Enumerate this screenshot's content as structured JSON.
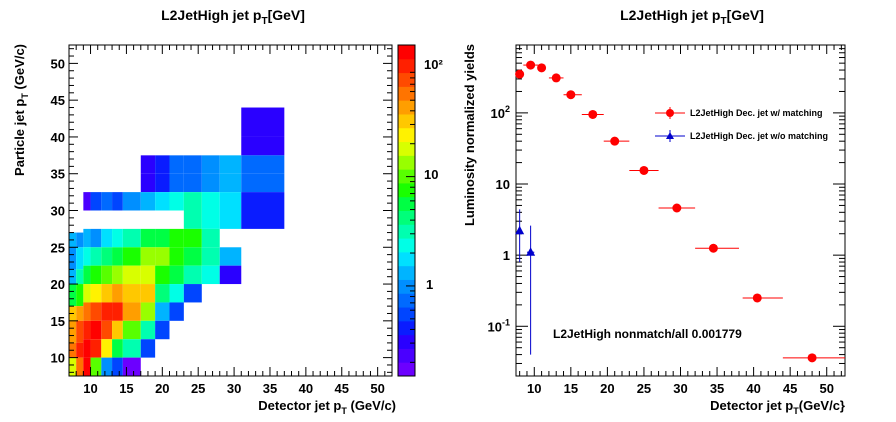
{
  "chart_data": [
    {
      "type": "heatmap",
      "title": "L2JetHigh jet p",
      "title_sub": "T",
      "title_suffix": "[GeV]",
      "xlabel": "Detector jet p",
      "xlabel_sub": "T",
      "xlabel_suffix": " (GeV/c)",
      "ylabel": "Particle jet p",
      "ylabel_sub": "T",
      "ylabel_suffix": " (GeV/c)",
      "xlim": [
        7,
        52
      ],
      "ylim": [
        7.5,
        52.5
      ],
      "xticks": [
        "10",
        "15",
        "20",
        "25",
        "30",
        "35",
        "40",
        "45",
        "50"
      ],
      "yticks": [
        "10",
        "15",
        "20",
        "25",
        "30",
        "35",
        "40",
        "45",
        "50"
      ],
      "zscale": "log",
      "zlim": [
        0.15,
        160
      ],
      "zticks": [
        "1",
        "10",
        "10²"
      ],
      "colormap": [
        "#6c00ff",
        "#4a00ff",
        "#2a00ff",
        "#0a1cff",
        "#0045ff",
        "#006aff",
        "#008fff",
        "#00b4ff",
        "#00e0ff",
        "#00ffe6",
        "#00ffb0",
        "#00ff7a",
        "#00ff44",
        "#1aff00",
        "#58ff00",
        "#98ff00",
        "#d8ff00",
        "#fff200",
        "#ffc800",
        "#ff9e00",
        "#ff7400",
        "#ff4a00",
        "#ff2000",
        "#ff0000"
      ],
      "cells": [
        {
          "x0": 7,
          "x1": 8,
          "y0": 25,
          "y1": 27,
          "z": 1.5
        },
        {
          "x0": 7,
          "x1": 8,
          "y0": 22,
          "y1": 25,
          "z": 1.0
        },
        {
          "x0": 7,
          "x1": 8,
          "y0": 20,
          "y1": 22,
          "z": 1.3
        },
        {
          "x0": 7,
          "x1": 8,
          "y0": 17,
          "y1": 20,
          "z": 5.0
        },
        {
          "x0": 7,
          "x1": 8,
          "y0": 15,
          "y1": 17,
          "z": 30
        },
        {
          "x0": 7,
          "x1": 8,
          "y0": 12,
          "y1": 15,
          "z": 50
        },
        {
          "x0": 7,
          "x1": 8,
          "y0": 10,
          "y1": 12,
          "z": 60
        },
        {
          "x0": 7,
          "x1": 8,
          "y0": 7.5,
          "y1": 10,
          "z": 20
        },
        {
          "x0": 8,
          "x1": 9,
          "y0": 25,
          "y1": 27,
          "z": 0.9
        },
        {
          "x0": 8,
          "x1": 9,
          "y0": 22,
          "y1": 25,
          "z": 1.8
        },
        {
          "x0": 8,
          "x1": 9,
          "y0": 20,
          "y1": 22,
          "z": 3.5
        },
        {
          "x0": 8,
          "x1": 9,
          "y0": 17,
          "y1": 20,
          "z": 8
        },
        {
          "x0": 8,
          "x1": 9,
          "y0": 15,
          "y1": 17,
          "z": 40
        },
        {
          "x0": 8,
          "x1": 9,
          "y0": 12,
          "y1": 15,
          "z": 70
        },
        {
          "x0": 8,
          "x1": 9,
          "y0": 10,
          "y1": 12,
          "z": 90
        },
        {
          "x0": 8,
          "x1": 9,
          "y0": 7.5,
          "y1": 10,
          "z": 60
        },
        {
          "x0": 9,
          "x1": 10,
          "y0": 30,
          "y1": 32.5,
          "z": 0.25
        },
        {
          "x0": 9,
          "x1": 10,
          "y0": 25,
          "y1": 27.5,
          "z": 1.2
        },
        {
          "x0": 9,
          "x1": 10,
          "y0": 22.5,
          "y1": 25,
          "z": 2.5
        },
        {
          "x0": 9,
          "x1": 10,
          "y0": 20,
          "y1": 22.5,
          "z": 6
        },
        {
          "x0": 9,
          "x1": 10,
          "y0": 17.5,
          "y1": 20,
          "z": 20
        },
        {
          "x0": 9,
          "x1": 10,
          "y0": 15,
          "y1": 17.5,
          "z": 60
        },
        {
          "x0": 9,
          "x1": 10,
          "y0": 12.5,
          "y1": 15,
          "z": 100
        },
        {
          "x0": 9,
          "x1": 10,
          "y0": 10,
          "y1": 12.5,
          "z": 150
        },
        {
          "x0": 9,
          "x1": 10,
          "y0": 7.5,
          "y1": 10,
          "z": 120
        },
        {
          "x0": 10,
          "x1": 11.5,
          "y0": 30,
          "y1": 32.5,
          "z": 0.6
        },
        {
          "x0": 10,
          "x1": 11.5,
          "y0": 25,
          "y1": 27.5,
          "z": 1.0
        },
        {
          "x0": 10,
          "x1": 11.5,
          "y0": 22.5,
          "y1": 25,
          "z": 3.0
        },
        {
          "x0": 10,
          "x1": 11.5,
          "y0": 20,
          "y1": 22.5,
          "z": 8
        },
        {
          "x0": 10,
          "x1": 11.5,
          "y0": 17.5,
          "y1": 20,
          "z": 25
        },
        {
          "x0": 10,
          "x1": 11.5,
          "y0": 15,
          "y1": 17.5,
          "z": 70
        },
        {
          "x0": 10,
          "x1": 11.5,
          "y0": 12.5,
          "y1": 15,
          "z": 120
        },
        {
          "x0": 10,
          "x1": 11.5,
          "y0": 10,
          "y1": 12.5,
          "z": 100
        },
        {
          "x0": 10,
          "x1": 11.5,
          "y0": 7.5,
          "y1": 10,
          "z": 10
        },
        {
          "x0": 11.5,
          "x1": 13,
          "y0": 30,
          "y1": 32.5,
          "z": 0.8
        },
        {
          "x0": 11.5,
          "x1": 13,
          "y0": 25,
          "y1": 27.5,
          "z": 2.0
        },
        {
          "x0": 11.5,
          "x1": 13,
          "y0": 22.5,
          "y1": 25,
          "z": 4.0
        },
        {
          "x0": 11.5,
          "x1": 13,
          "y0": 20,
          "y1": 22.5,
          "z": 10
        },
        {
          "x0": 11.5,
          "x1": 13,
          "y0": 17.5,
          "y1": 20,
          "z": 35
        },
        {
          "x0": 11.5,
          "x1": 13,
          "y0": 15,
          "y1": 17.5,
          "z": 100
        },
        {
          "x0": 11.5,
          "x1": 13,
          "y0": 12.5,
          "y1": 15,
          "z": 80
        },
        {
          "x0": 11.5,
          "x1": 13,
          "y0": 10,
          "y1": 12.5,
          "z": 25
        },
        {
          "x0": 11.5,
          "x1": 13,
          "y0": 7.5,
          "y1": 10,
          "z": 1.0
        },
        {
          "x0": 13,
          "x1": 14.5,
          "y0": 30,
          "y1": 32.5,
          "z": 0.5
        },
        {
          "x0": 13,
          "x1": 14.5,
          "y0": 25,
          "y1": 27.5,
          "z": 2.5
        },
        {
          "x0": 13,
          "x1": 14.5,
          "y0": 22.5,
          "y1": 25,
          "z": 5.0
        },
        {
          "x0": 13,
          "x1": 14.5,
          "y0": 20,
          "y1": 22.5,
          "z": 12
        },
        {
          "x0": 13,
          "x1": 14.5,
          "y0": 17.5,
          "y1": 20,
          "z": 40
        },
        {
          "x0": 13,
          "x1": 14.5,
          "y0": 15,
          "y1": 17.5,
          "z": 90
        },
        {
          "x0": 13,
          "x1": 14.5,
          "y0": 12.5,
          "y1": 15,
          "z": 30
        },
        {
          "x0": 13,
          "x1": 14.5,
          "y0": 10,
          "y1": 12.5,
          "z": 6
        },
        {
          "x0": 13,
          "x1": 14.5,
          "y0": 7.5,
          "y1": 10,
          "z": 0.5
        },
        {
          "x0": 14.5,
          "x1": 17,
          "y0": 30,
          "y1": 32.5,
          "z": 1.0
        },
        {
          "x0": 14.5,
          "x1": 17,
          "y0": 25,
          "y1": 27.5,
          "z": 3.5
        },
        {
          "x0": 14.5,
          "x1": 17,
          "y0": 22.5,
          "y1": 25,
          "z": 8
        },
        {
          "x0": 14.5,
          "x1": 17,
          "y0": 20,
          "y1": 22.5,
          "z": 18
        },
        {
          "x0": 14.5,
          "x1": 17,
          "y0": 17.5,
          "y1": 20,
          "z": 30
        },
        {
          "x0": 14.5,
          "x1": 17,
          "y0": 15,
          "y1": 17.5,
          "z": 40
        },
        {
          "x0": 14.5,
          "x1": 17,
          "y0": 12.5,
          "y1": 15,
          "z": 10
        },
        {
          "x0": 14.5,
          "x1": 17,
          "y0": 10,
          "y1": 12.5,
          "z": 3.0
        },
        {
          "x0": 14.5,
          "x1": 17,
          "y0": 7.5,
          "y1": 10,
          "z": 0.2
        },
        {
          "x0": 17,
          "x1": 19,
          "y0": 35,
          "y1": 37.5,
          "z": 0.3
        },
        {
          "x0": 17,
          "x1": 19,
          "y0": 32.5,
          "y1": 35,
          "z": 0.3
        },
        {
          "x0": 17,
          "x1": 19,
          "y0": 30,
          "y1": 32.5,
          "z": 1.3
        },
        {
          "x0": 17,
          "x1": 19,
          "y0": 25,
          "y1": 27.5,
          "z": 6
        },
        {
          "x0": 17,
          "x1": 19,
          "y0": 22.5,
          "y1": 25,
          "z": 12
        },
        {
          "x0": 17,
          "x1": 19,
          "y0": 20,
          "y1": 22.5,
          "z": 20
        },
        {
          "x0": 17,
          "x1": 19,
          "y0": 17.5,
          "y1": 20,
          "z": 35
        },
        {
          "x0": 17,
          "x1": 19,
          "y0": 15,
          "y1": 17.5,
          "z": 12
        },
        {
          "x0": 17,
          "x1": 19,
          "y0": 12.5,
          "y1": 15,
          "z": 3.5
        },
        {
          "x0": 17,
          "x1": 19,
          "y0": 10,
          "y1": 12.5,
          "z": 0.5
        },
        {
          "x0": 19,
          "x1": 21,
          "y0": 35,
          "y1": 37.5,
          "z": 0.4
        },
        {
          "x0": 19,
          "x1": 21,
          "y0": 32.5,
          "y1": 35,
          "z": 0.4
        },
        {
          "x0": 19,
          "x1": 21,
          "y0": 30,
          "y1": 32.5,
          "z": 2.0
        },
        {
          "x0": 19,
          "x1": 21,
          "y0": 25,
          "y1": 27.5,
          "z": 6
        },
        {
          "x0": 19,
          "x1": 21,
          "y0": 22.5,
          "y1": 25,
          "z": 12
        },
        {
          "x0": 19,
          "x1": 21,
          "y0": 20,
          "y1": 22.5,
          "z": 8
        },
        {
          "x0": 19,
          "x1": 21,
          "y0": 17.5,
          "y1": 20,
          "z": 4
        },
        {
          "x0": 19,
          "x1": 21,
          "y0": 15,
          "y1": 17.5,
          "z": 1.2
        },
        {
          "x0": 19,
          "x1": 21,
          "y0": 12.5,
          "y1": 15,
          "z": 0.5
        },
        {
          "x0": 21,
          "x1": 23,
          "y0": 35,
          "y1": 37.5,
          "z": 0.7
        },
        {
          "x0": 21,
          "x1": 23,
          "y0": 32.5,
          "y1": 35,
          "z": 0.7
        },
        {
          "x0": 21,
          "x1": 23,
          "y0": 30,
          "y1": 32.5,
          "z": 2.5
        },
        {
          "x0": 21,
          "x1": 23,
          "y0": 25,
          "y1": 27.5,
          "z": 8
        },
        {
          "x0": 21,
          "x1": 23,
          "y0": 22.5,
          "y1": 25,
          "z": 8
        },
        {
          "x0": 21,
          "x1": 23,
          "y0": 20,
          "y1": 22.5,
          "z": 5
        },
        {
          "x0": 21,
          "x1": 23,
          "y0": 17.5,
          "y1": 20,
          "z": 2.5
        },
        {
          "x0": 21,
          "x1": 23,
          "y0": 15,
          "y1": 17.5,
          "z": 0.6
        },
        {
          "x0": 23,
          "x1": 25.5,
          "y0": 35,
          "y1": 37.5,
          "z": 0.7
        },
        {
          "x0": 23,
          "x1": 25.5,
          "y0": 32.5,
          "y1": 35,
          "z": 0.7
        },
        {
          "x0": 23,
          "x1": 25.5,
          "y0": 30,
          "y1": 32.5,
          "z": 3.0
        },
        {
          "x0": 23,
          "x1": 25.5,
          "y0": 27.5,
          "y1": 30,
          "z": 3.0
        },
        {
          "x0": 23,
          "x1": 25.5,
          "y0": 25,
          "y1": 27.5,
          "z": 7
        },
        {
          "x0": 23,
          "x1": 25.5,
          "y0": 22.5,
          "y1": 25,
          "z": 6
        },
        {
          "x0": 23,
          "x1": 25.5,
          "y0": 20,
          "y1": 22.5,
          "z": 3
        },
        {
          "x0": 23,
          "x1": 25.5,
          "y0": 17.5,
          "y1": 20,
          "z": 0.6
        },
        {
          "x0": 25.5,
          "x1": 28,
          "y0": 35,
          "y1": 37.5,
          "z": 0.9
        },
        {
          "x0": 25.5,
          "x1": 28,
          "y0": 32.5,
          "y1": 35,
          "z": 0.9
        },
        {
          "x0": 25.5,
          "x1": 28,
          "y0": 30,
          "y1": 32.5,
          "z": 2.2
        },
        {
          "x0": 25.5,
          "x1": 28,
          "y0": 27.5,
          "y1": 30,
          "z": 2.2
        },
        {
          "x0": 25.5,
          "x1": 28,
          "y0": 25,
          "y1": 27.5,
          "z": 3.5
        },
        {
          "x0": 25.5,
          "x1": 28,
          "y0": 22.5,
          "y1": 25,
          "z": 3.5
        },
        {
          "x0": 25.5,
          "x1": 28,
          "y0": 20,
          "y1": 22.5,
          "z": 2.5
        },
        {
          "x0": 28,
          "x1": 31,
          "y0": 35,
          "y1": 37.5,
          "z": 1.2
        },
        {
          "x0": 28,
          "x1": 31,
          "y0": 32.5,
          "y1": 35,
          "z": 1.2
        },
        {
          "x0": 28,
          "x1": 31,
          "y0": 30,
          "y1": 32.5,
          "z": 2.0
        },
        {
          "x0": 28,
          "x1": 31,
          "y0": 27.5,
          "y1": 30,
          "z": 2.0
        },
        {
          "x0": 28,
          "x1": 31,
          "y0": 22.5,
          "y1": 25,
          "z": 1.5
        },
        {
          "x0": 28,
          "x1": 31,
          "y0": 20,
          "y1": 22.5,
          "z": 0.3
        },
        {
          "x0": 31,
          "x1": 37,
          "y0": 40,
          "y1": 44,
          "z": 0.28
        },
        {
          "x0": 31,
          "x1": 37,
          "y0": 37.5,
          "y1": 40,
          "z": 0.28
        },
        {
          "x0": 31,
          "x1": 37,
          "y0": 35,
          "y1": 37.5,
          "z": 0.8
        },
        {
          "x0": 31,
          "x1": 37,
          "y0": 32.5,
          "y1": 35,
          "z": 0.8
        },
        {
          "x0": 31,
          "x1": 37,
          "y0": 30,
          "y1": 32.5,
          "z": 0.4
        },
        {
          "x0": 31,
          "x1": 37,
          "y0": 27.5,
          "y1": 30,
          "z": 0.4
        }
      ]
    },
    {
      "type": "scatter",
      "title": "L2JetHigh jet p",
      "title_sub": "T",
      "title_suffix": "[GeV]",
      "xlabel": "Detector jet p",
      "xlabel_sub": "T",
      "xlabel_suffix": "(GeV/c}",
      "ylabel": "Luminosity normalized yields",
      "xlim": [
        7.5,
        52.5
      ],
      "ylim": [
        0.02,
        900
      ],
      "yscale": "log",
      "xticks": [
        "10",
        "15",
        "20",
        "25",
        "30",
        "35",
        "40",
        "45",
        "50"
      ],
      "ytick_labels": [
        {
          "value": 0.1,
          "base": "10",
          "sup": "-1"
        },
        {
          "value": 1,
          "base": "1",
          "sup": ""
        },
        {
          "value": 10,
          "base": "10",
          "sup": ""
        },
        {
          "value": 100,
          "base": "10",
          "sup": "2"
        }
      ],
      "series": [
        {
          "name": "L2JetHigh Dec. jet w/ matching",
          "color": "#ff0000",
          "marker": "circle",
          "points": [
            {
              "x": 8,
              "xlo": 7.5,
              "xhi": 8.5,
              "y": 350
            },
            {
              "x": 9.5,
              "xlo": 8.5,
              "xhi": 10.5,
              "y": 470
            },
            {
              "x": 11,
              "xlo": 10.5,
              "xhi": 11.5,
              "y": 430
            },
            {
              "x": 13,
              "xlo": 12,
              "xhi": 14,
              "y": 310
            },
            {
              "x": 15,
              "xlo": 14,
              "xhi": 16.5,
              "y": 180
            },
            {
              "x": 18,
              "xlo": 16.5,
              "xhi": 19.5,
              "y": 95
            },
            {
              "x": 21,
              "xlo": 19.5,
              "xhi": 23,
              "y": 40
            },
            {
              "x": 25,
              "xlo": 23,
              "xhi": 27,
              "y": 15.5
            },
            {
              "x": 29.5,
              "xlo": 27,
              "xhi": 32,
              "y": 4.6
            },
            {
              "x": 34.5,
              "xlo": 32,
              "xhi": 38,
              "y": 1.25
            },
            {
              "x": 40.5,
              "xlo": 38.5,
              "xhi": 44,
              "y": 0.25
            },
            {
              "x": 48,
              "xlo": 44,
              "xhi": 52.5,
              "y": 0.036
            }
          ]
        },
        {
          "name": "L2JetHigh Dec. jet w/o matching",
          "color": "#0000cc",
          "marker": "triangle",
          "points": [
            {
              "x": 8,
              "xlo": 7.8,
              "xhi": 8.2,
              "y": 2.2,
              "ylo": 0.8,
              "yhi": 4.4
            },
            {
              "x": 9.5,
              "xlo": 9,
              "xhi": 10,
              "y": 1.1,
              "ylo": 0.04,
              "yhi": 2.6
            }
          ]
        }
      ],
      "legend_position": "top-right",
      "annotation": "L2JetHigh nonmatch/all 0.001779"
    }
  ]
}
